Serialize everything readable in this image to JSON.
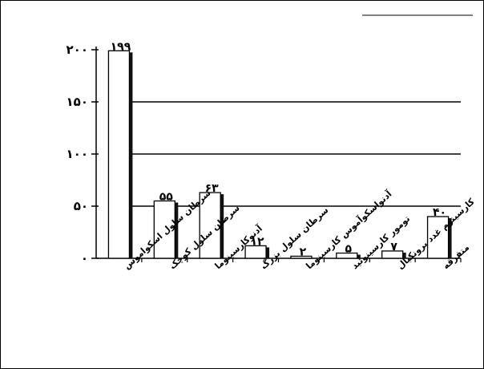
{
  "chart_data": {
    "type": "bar",
    "title": "",
    "xlabel": "",
    "ylabel": "",
    "ylim": [
      0,
      200
    ],
    "y_ticks": [
      {
        "value": 0,
        "label": "۰"
      },
      {
        "value": 50,
        "label": "۵۰"
      },
      {
        "value": 100,
        "label": "۱۰۰"
      },
      {
        "value": 150,
        "label": "۱۵۰"
      },
      {
        "value": 200,
        "label": "۲۰۰"
      }
    ],
    "gridlines": [
      50,
      100,
      150
    ],
    "categories": [
      "سرطان سلول اسکواموس",
      "سرطان سلول کوچک",
      "آدنوکارسینوما",
      "سرطان سلول بزرگ",
      "آدنواسکوآموس کارسینوما",
      "تومور کارسینوئید",
      "کارسینوم غدد برونکیال",
      "متفرقه"
    ],
    "values": [
      199,
      55,
      63,
      12,
      2,
      5,
      7,
      40
    ],
    "value_labels": [
      "۱۹۹",
      "۵۵",
      "۶۳",
      "۱۲",
      "۲",
      "۵",
      "۷",
      "۴۰"
    ],
    "colors": {
      "bar_fill": "#ffffff",
      "bar_shadow": "#111111",
      "axis": "#000000"
    }
  }
}
